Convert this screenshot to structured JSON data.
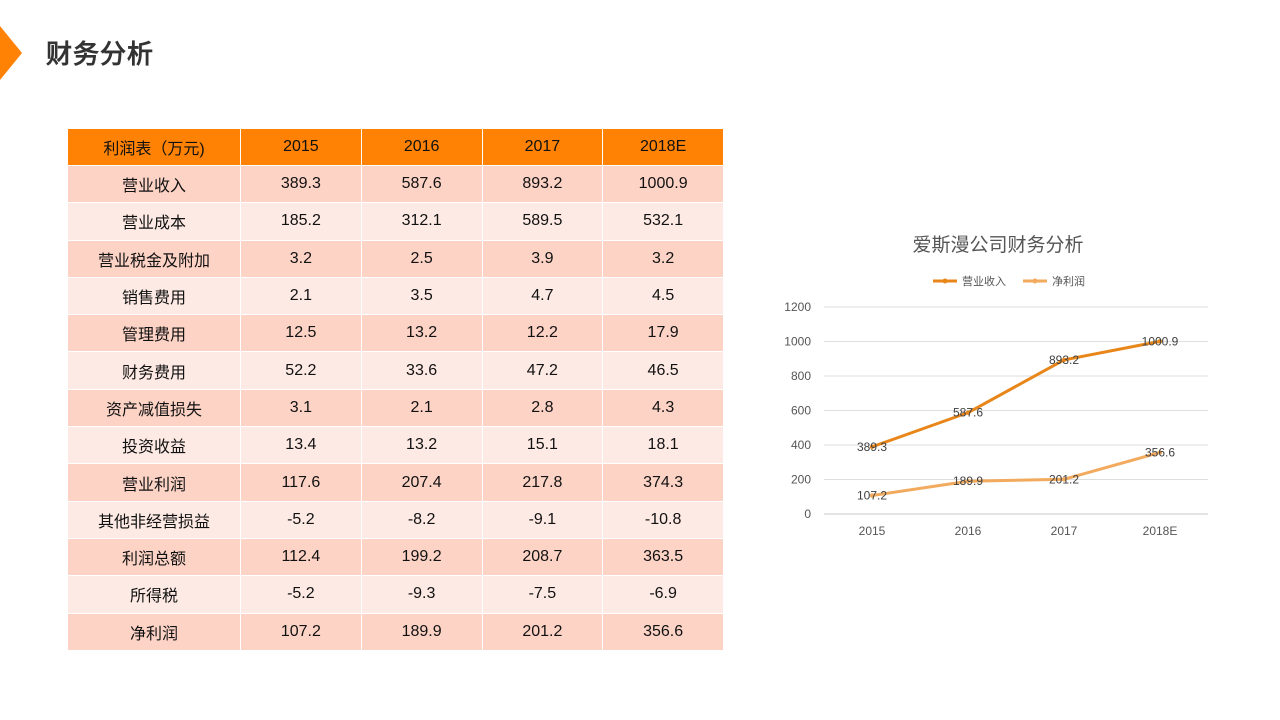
{
  "header": {
    "title": "财务分析",
    "accent_color": "#ff8205"
  },
  "table": {
    "columns": [
      "利润表（万元)",
      "2015",
      "2016",
      "2017",
      "2018E"
    ],
    "rows": [
      [
        "营业收入",
        "389.3",
        "587.6",
        "893.2",
        "1000.9"
      ],
      [
        "营业成本",
        "185.2",
        "312.1",
        "589.5",
        "532.1"
      ],
      [
        "营业税金及附加",
        "3.2",
        "2.5",
        "3.9",
        "3.2"
      ],
      [
        "销售费用",
        "2.1",
        "3.5",
        "4.7",
        "4.5"
      ],
      [
        "管理费用",
        "12.5",
        "13.2",
        "12.2",
        "17.9"
      ],
      [
        "财务费用",
        "52.2",
        "33.6",
        "47.2",
        "46.5"
      ],
      [
        "资产减值损失",
        "3.1",
        "2.1",
        "2.8",
        "4.3"
      ],
      [
        "投资收益",
        "13.4",
        "13.2",
        "15.1",
        "18.1"
      ],
      [
        "营业利润",
        "117.6",
        "207.4",
        "217.8",
        "374.3"
      ],
      [
        "其他非经营损益",
        "-5.2",
        "-8.2",
        "-9.1",
        "-10.8"
      ],
      [
        "利润总额",
        "112.4",
        "199.2",
        "208.7",
        "363.5"
      ],
      [
        "所得税",
        "-5.2",
        "-9.3",
        "-7.5",
        "-6.9"
      ],
      [
        "净利润",
        "107.2",
        "189.9",
        "201.2",
        "356.6"
      ]
    ]
  },
  "chart_data": {
    "type": "line",
    "title": "爱斯漫公司财务分析",
    "categories": [
      "2015",
      "2016",
      "2017",
      "2018E"
    ],
    "series": [
      {
        "name": "营业收入",
        "values": [
          389.3,
          587.6,
          893.2,
          1000.9
        ],
        "color": "#e8861a"
      },
      {
        "name": "净利润",
        "values": [
          107.2,
          189.9,
          201.2,
          356.6
        ],
        "color": "#f2aa5e"
      }
    ],
    "ylim": [
      0,
      1200
    ],
    "yticks": [
      0,
      200,
      400,
      600,
      800,
      1000,
      1200
    ],
    "xlabel": "",
    "ylabel": "",
    "grid": true,
    "legend": "top"
  }
}
